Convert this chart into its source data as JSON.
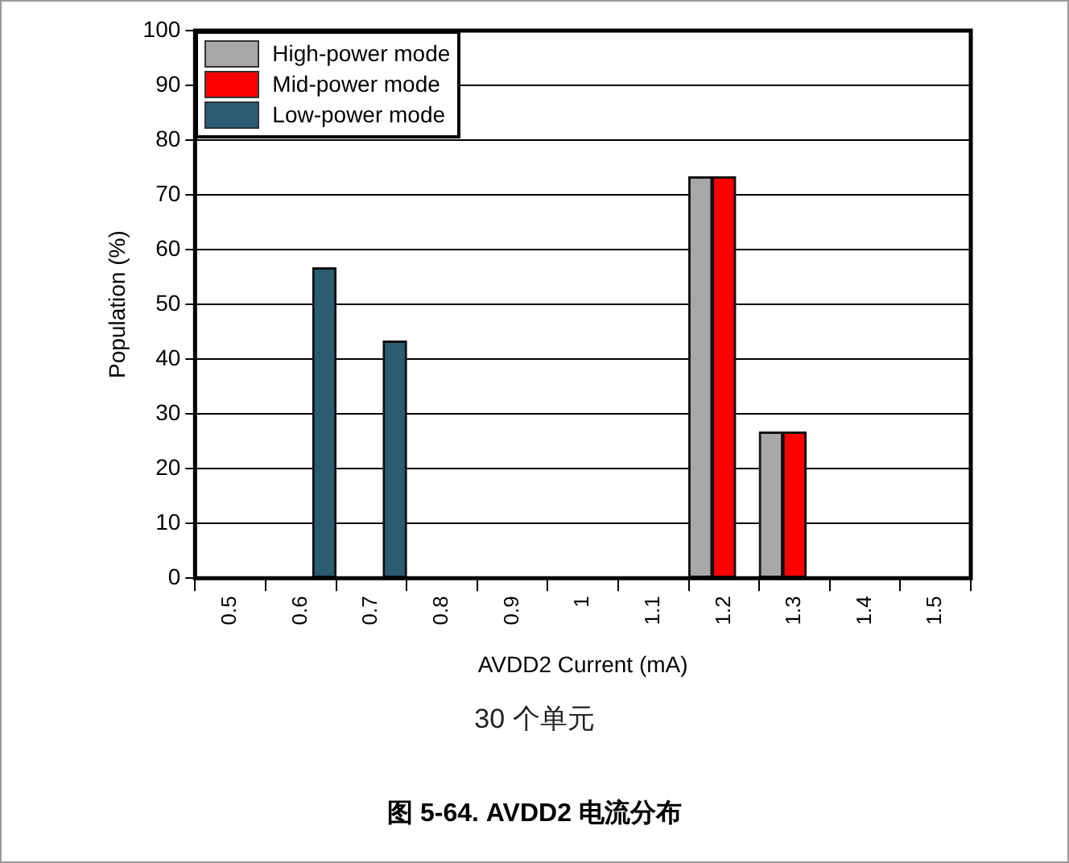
{
  "chart_data": {
    "type": "bar",
    "title": "图 5-64. AVDD2 电流分布",
    "subtitle": "30 个单元",
    "xlabel": "AVDD2 Current (mA)",
    "ylabel": "Population (%)",
    "categories": [
      "0.5",
      "0.6",
      "0.7",
      "0.8",
      "0.9",
      "1",
      "1.1",
      "1.2",
      "1.3",
      "1.4",
      "1.5"
    ],
    "series": [
      {
        "name": "High-power mode",
        "color": "#a8a8a8",
        "values": [
          0,
          0,
          0,
          0,
          0,
          0,
          0,
          73.3,
          26.7,
          0,
          0
        ]
      },
      {
        "name": "Mid-power mode",
        "color": "#ff0000",
        "values": [
          0,
          0,
          0,
          0,
          0,
          0,
          0,
          73.3,
          26.7,
          0,
          0
        ]
      },
      {
        "name": "Low-power mode",
        "color": "#2b5c74",
        "values": [
          0,
          56.7,
          43.3,
          0,
          0,
          0,
          0,
          0,
          0,
          0,
          0
        ]
      }
    ],
    "ylim": [
      0,
      100
    ],
    "yticks": [
      0,
      10,
      20,
      30,
      40,
      50,
      60,
      70,
      80,
      90,
      100
    ],
    "grid": "y",
    "legend": "top left"
  }
}
